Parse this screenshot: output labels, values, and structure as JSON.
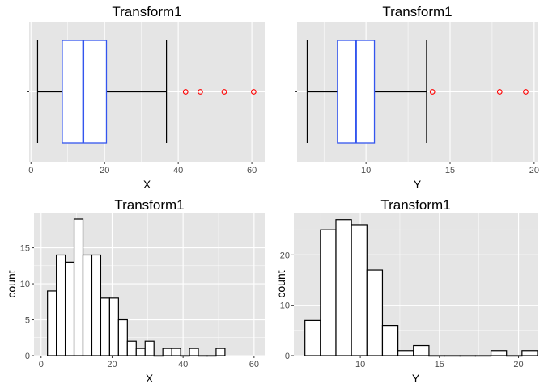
{
  "colors": {
    "panel_bg": "#e5e5e5",
    "grid_major": "#ffffff",
    "box_border": "#3355ee",
    "box_fill": "#ffffff",
    "whisker": "#000000",
    "outlier": "#ff0000",
    "bar_fill": "#ffffff",
    "bar_border": "#000000"
  },
  "chart_data": [
    {
      "type": "box",
      "title": "Transform1",
      "xlabel": "X",
      "ylabel": "",
      "xlim": [
        -0.5,
        63.5
      ],
      "xticks": [
        0,
        20,
        40,
        60
      ],
      "tick_labels": [
        "0",
        "20",
        "40",
        "60"
      ],
      "grid": true,
      "box": {
        "whisker_low": 1.8,
        "q1": 8.5,
        "median": 14.2,
        "q3": 20.5,
        "whisker_high": 36.8
      },
      "outliers": [
        42,
        46,
        52.5,
        60.5
      ]
    },
    {
      "type": "box",
      "title": "Transform1",
      "xlabel": "Y",
      "ylabel": "",
      "xlim": [
        5.9,
        20.2
      ],
      "xticks": [
        10,
        15,
        20
      ],
      "tick_labels": [
        "10",
        "15",
        "20"
      ],
      "grid": true,
      "box": {
        "whisker_low": 6.5,
        "q1": 8.3,
        "median": 9.4,
        "q3": 10.5,
        "whisker_high": 13.6
      },
      "outliers": [
        13.95,
        17.95,
        19.5
      ]
    },
    {
      "type": "bar",
      "title": "Transform1",
      "xlabel": "X",
      "ylabel": "count",
      "xlim": [
        -2,
        63
      ],
      "ylim": [
        0,
        19.9
      ],
      "xticks": [
        0,
        20,
        40,
        60
      ],
      "x_tick_labels": [
        "0",
        "20",
        "40",
        "60"
      ],
      "yticks": [
        0,
        5,
        10,
        15
      ],
      "y_tick_labels": [
        "0",
        "5",
        "10",
        "15"
      ],
      "grid": true,
      "bin_start": 1.8,
      "bin_width": 2.5,
      "values": [
        9,
        14,
        13,
        19,
        14,
        14,
        8,
        8,
        5,
        2,
        1,
        2,
        0,
        1,
        1,
        0,
        1,
        0,
        0,
        1
      ]
    },
    {
      "type": "bar",
      "title": "Transform1",
      "xlabel": "Y",
      "ylabel": "count",
      "xlim": [
        5.8,
        21.2
      ],
      "ylim": [
        0,
        28.4
      ],
      "xticks": [
        10,
        15,
        20
      ],
      "x_tick_labels": [
        "10",
        "15",
        "20"
      ],
      "yticks": [
        0,
        10,
        20
      ],
      "y_tick_labels": [
        "0",
        "10",
        "20"
      ],
      "grid": true,
      "bin_start": 6.5,
      "bin_width": 0.98,
      "values": [
        7,
        25,
        27,
        26,
        17,
        6,
        1,
        2,
        0,
        0,
        0,
        0,
        1,
        0,
        1
      ]
    }
  ]
}
